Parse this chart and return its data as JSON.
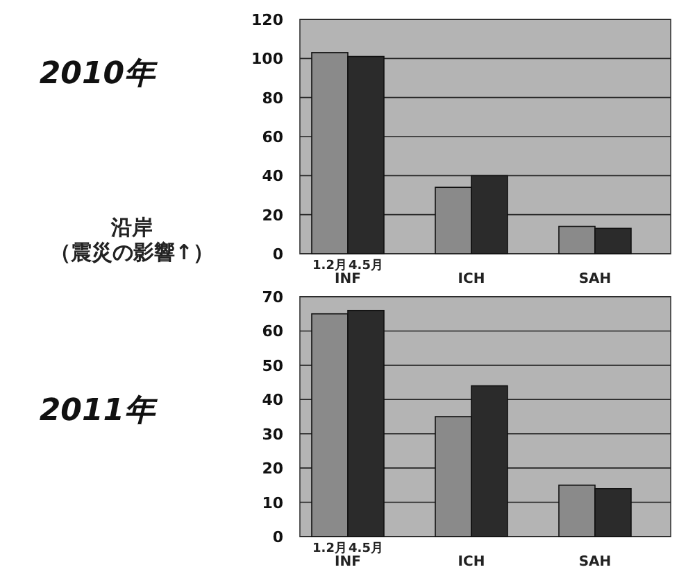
{
  "chart_data": [
    {
      "type": "bar",
      "title": "2010年",
      "annotations": [
        "沿岸",
        "（震災の影響↑）"
      ],
      "categories": [
        "INF",
        "ICH",
        "SAH"
      ],
      "series": [
        {
          "name": "1.2月",
          "color": "#8a8a8a",
          "values": [
            103,
            34,
            14
          ]
        },
        {
          "name": "4.5月",
          "color": "#2b2b2b",
          "values": [
            101,
            40,
            13
          ]
        }
      ],
      "ylim": [
        0,
        120
      ],
      "yticks": [
        0,
        20,
        40,
        60,
        80,
        100,
        120
      ],
      "grid": "y"
    },
    {
      "type": "bar",
      "title": "2011年",
      "categories": [
        "INF",
        "ICH",
        "SAH"
      ],
      "series": [
        {
          "name": "1.2月",
          "color": "#8a8a8a",
          "values": [
            65,
            35,
            15
          ]
        },
        {
          "name": "4.5月",
          "color": "#2b2b2b",
          "values": [
            66,
            44,
            14
          ]
        }
      ],
      "ylim": [
        0,
        70
      ],
      "yticks": [
        0,
        10,
        20,
        30,
        40,
        50,
        60,
        70
      ],
      "grid": "y"
    }
  ]
}
